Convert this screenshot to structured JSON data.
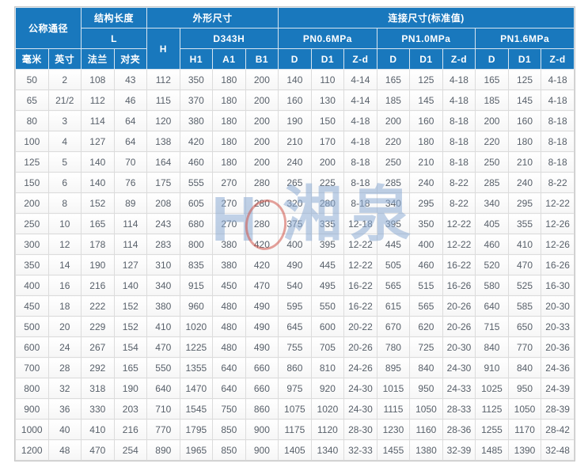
{
  "colors": {
    "header_bg": "#1978bd",
    "header_text": "#ffffff",
    "cell_text": "#58606a",
    "grid_line": "#dcdcdc",
    "outer_border": "#c6c6c6",
    "watermark_blue": "#8cacd4",
    "watermark_red": "#d05448"
  },
  "watermark": {
    "letter": "H",
    "text": "湘泉"
  },
  "chart_data": {
    "type": "table",
    "header": {
      "rows": [
        [
          {
            "label": "公称通径",
            "colspan": 2,
            "rowspan": 2
          },
          {
            "label": "结构长度",
            "colspan": 2
          },
          {
            "label": "外形尺寸",
            "colspan": 4
          },
          {
            "label": "连接尺寸(标准值)",
            "colspan": 9
          }
        ],
        [
          {
            "label": "L",
            "colspan": 2
          },
          {
            "label": "H",
            "rowspan": 2
          },
          {
            "label": "D343H",
            "colspan": 3
          },
          {
            "label": "PN0.6MPa",
            "colspan": 3
          },
          {
            "label": "PN1.0MPa",
            "colspan": 3
          },
          {
            "label": "PN1.6MPa",
            "colspan": 3
          }
        ],
        [
          {
            "label": "毫米"
          },
          {
            "label": "英寸"
          },
          {
            "label": "法兰"
          },
          {
            "label": "对夹"
          },
          {
            "label": "H1"
          },
          {
            "label": "A1"
          },
          {
            "label": "B1"
          },
          {
            "label": "D"
          },
          {
            "label": "D1"
          },
          {
            "label": "Z-d"
          },
          {
            "label": "D"
          },
          {
            "label": "D1"
          },
          {
            "label": "Z-d"
          },
          {
            "label": "D"
          },
          {
            "label": "D1"
          },
          {
            "label": "Z-d"
          }
        ]
      ]
    },
    "columns": [
      "dn_mm",
      "dn_inch",
      "L_flange",
      "L_wafer",
      "H",
      "H1",
      "A1",
      "B1",
      "pn06_D",
      "pn06_D1",
      "pn06_Zd",
      "pn10_D",
      "pn10_D1",
      "pn10_Zd",
      "pn16_D",
      "pn16_D1",
      "pn16_Zd"
    ],
    "rows": [
      [
        50,
        2,
        108,
        43,
        112,
        350,
        180,
        200,
        140,
        110,
        "4-14",
        165,
        125,
        "4-18",
        165,
        125,
        "4-18"
      ],
      [
        65,
        "21/2",
        112,
        46,
        115,
        370,
        180,
        200,
        160,
        130,
        "4-14",
        185,
        145,
        "4-18",
        185,
        145,
        "4-18"
      ],
      [
        80,
        3,
        114,
        64,
        120,
        380,
        180,
        200,
        190,
        150,
        "4-18",
        200,
        160,
        "8-18",
        200,
        160,
        "8-18"
      ],
      [
        100,
        4,
        127,
        64,
        138,
        420,
        180,
        200,
        210,
        170,
        "4-18",
        220,
        180,
        "8-18",
        220,
        180,
        "8-18"
      ],
      [
        125,
        5,
        140,
        70,
        164,
        460,
        180,
        200,
        240,
        200,
        "8-18",
        250,
        210,
        "8-18",
        250,
        210,
        "8-18"
      ],
      [
        150,
        6,
        140,
        76,
        175,
        555,
        270,
        280,
        265,
        225,
        "8-18",
        285,
        240,
        "8-22",
        285,
        240,
        "8-22"
      ],
      [
        200,
        8,
        152,
        89,
        208,
        605,
        270,
        280,
        320,
        280,
        "8-18",
        340,
        295,
        "8-22",
        340,
        295,
        "12-22"
      ],
      [
        250,
        10,
        165,
        114,
        243,
        680,
        270,
        280,
        375,
        335,
        "12-18",
        395,
        350,
        "12-22",
        405,
        355,
        "12-26"
      ],
      [
        300,
        12,
        178,
        114,
        283,
        800,
        380,
        420,
        400,
        395,
        "12-22",
        445,
        400,
        "12-22",
        460,
        410,
        "12-26"
      ],
      [
        350,
        14,
        190,
        127,
        310,
        835,
        380,
        420,
        490,
        445,
        "12-22",
        505,
        460,
        "16-22",
        520,
        470,
        "16-26"
      ],
      [
        400,
        16,
        216,
        140,
        340,
        915,
        450,
        470,
        540,
        495,
        "16-22",
        565,
        515,
        "16-26",
        580,
        525,
        "16-30"
      ],
      [
        450,
        18,
        222,
        152,
        380,
        960,
        480,
        490,
        595,
        550,
        "16-22",
        615,
        565,
        "20-26",
        640,
        585,
        "20-30"
      ],
      [
        500,
        20,
        229,
        152,
        410,
        1020,
        480,
        490,
        645,
        600,
        "20-22",
        670,
        620,
        "20-26",
        715,
        650,
        "20-33"
      ],
      [
        600,
        24,
        267,
        154,
        470,
        1225,
        480,
        490,
        755,
        705,
        "20-26",
        780,
        725,
        "20-30",
        840,
        770,
        "20-36"
      ],
      [
        700,
        28,
        292,
        165,
        550,
        1355,
        640,
        660,
        860,
        810,
        "24-26",
        895,
        840,
        "24-30",
        910,
        840,
        "24-36"
      ],
      [
        800,
        32,
        318,
        190,
        640,
        1470,
        640,
        660,
        975,
        920,
        "24-30",
        1015,
        950,
        "24-33",
        1025,
        950,
        "24-39"
      ],
      [
        900,
        36,
        330,
        203,
        710,
        1545,
        750,
        860,
        1075,
        1020,
        "24-30",
        1115,
        1050,
        "28-33",
        1125,
        1050,
        "28-39"
      ],
      [
        1000,
        40,
        410,
        216,
        770,
        1795,
        850,
        900,
        1175,
        1120,
        "28-30",
        1230,
        1160,
        "28-36",
        1255,
        1170,
        "28-42"
      ],
      [
        1200,
        48,
        470,
        254,
        890,
        1965,
        850,
        900,
        1405,
        1340,
        "32-33",
        1455,
        1380,
        "32-39",
        1485,
        1390,
        "32-48"
      ]
    ]
  }
}
